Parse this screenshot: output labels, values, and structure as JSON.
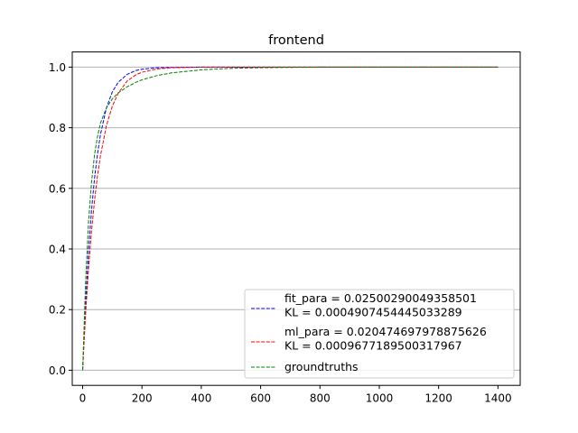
{
  "chart_data": {
    "type": "line",
    "title": "frontend",
    "xlabel": "",
    "ylabel": "",
    "xlim": [
      -35,
      1475
    ],
    "ylim": [
      -0.05,
      1.05
    ],
    "xticks": [
      0,
      200,
      400,
      600,
      800,
      1000,
      1200,
      1400
    ],
    "yticks": [
      0.0,
      0.2,
      0.4,
      0.6,
      0.8,
      1.0
    ],
    "xtick_labels": [
      "0",
      "200",
      "400",
      "600",
      "800",
      "1000",
      "1200",
      "1400"
    ],
    "ytick_labels": [
      "0.0",
      "0.2",
      "0.4",
      "0.6",
      "0.8",
      "1.0"
    ],
    "grid": {
      "y": true,
      "x": false
    },
    "legend_position": "lower-right",
    "series": [
      {
        "name": "fit_para = 0.02500290049358501\n KL = 0.0004907454445033289",
        "label_lines": [
          "fit_para = 0.02500290049358501",
          " KL = 0.0004907454445033289"
        ],
        "color": "#0000ff",
        "style": "dashed",
        "x": [
          0,
          10,
          20,
          30,
          40,
          50,
          60,
          80,
          100,
          120,
          150,
          180,
          200,
          250,
          300,
          400,
          600,
          800,
          1000,
          1200,
          1400
        ],
        "y": [
          0.0,
          0.221,
          0.394,
          0.528,
          0.632,
          0.713,
          0.777,
          0.865,
          0.918,
          0.95,
          0.976,
          0.989,
          0.993,
          0.998,
          0.999,
          1.0,
          1.0,
          1.0,
          1.0,
          1.0,
          1.0
        ]
      },
      {
        "name": "ml_para = 0.020474697978875626\n KL = 0.0009677189500317967",
        "label_lines": [
          "ml_para = 0.020474697978875626",
          " KL = 0.0009677189500317967"
        ],
        "color": "#ff0000",
        "style": "dashed",
        "x": [
          0,
          10,
          20,
          30,
          40,
          50,
          60,
          80,
          100,
          120,
          150,
          180,
          200,
          250,
          300,
          400,
          600,
          800,
          1000,
          1200,
          1400
        ],
        "y": [
          0.0,
          0.185,
          0.336,
          0.459,
          0.559,
          0.641,
          0.707,
          0.806,
          0.871,
          0.914,
          0.954,
          0.975,
          0.983,
          0.994,
          0.998,
          1.0,
          1.0,
          1.0,
          1.0,
          1.0,
          1.0
        ]
      },
      {
        "name": "groundtruths",
        "label_lines": [
          "groundtruths"
        ],
        "color": "#008000",
        "style": "dashed",
        "x": [
          0,
          10,
          20,
          30,
          40,
          50,
          60,
          80,
          100,
          120,
          150,
          180,
          200,
          250,
          300,
          400,
          500,
          600,
          800,
          1000,
          1200,
          1400
        ],
        "y": [
          0.0,
          0.29,
          0.49,
          0.62,
          0.71,
          0.77,
          0.815,
          0.865,
          0.895,
          0.915,
          0.935,
          0.95,
          0.958,
          0.972,
          0.981,
          0.991,
          0.996,
          0.998,
          1.0,
          1.0,
          1.0,
          1.0
        ]
      }
    ]
  }
}
